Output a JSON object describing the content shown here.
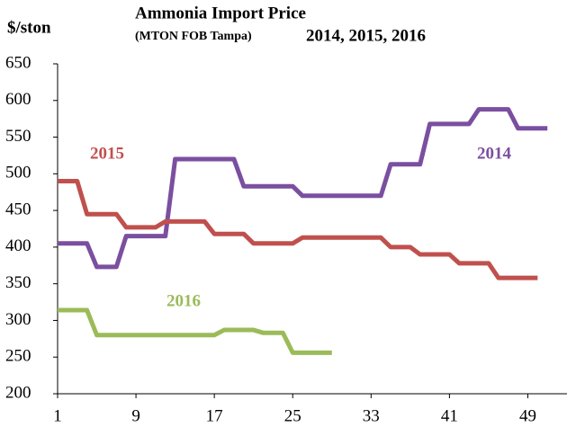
{
  "chart_data": {
    "type": "line",
    "title": "Ammonia Import Price",
    "subtitle": "(MTON FOB Tampa)",
    "subtitle2": "2014, 2015, 2016",
    "y_label": "$/ston",
    "x": [
      1,
      2,
      3,
      4,
      5,
      6,
      7,
      8,
      9,
      10,
      11,
      12,
      13,
      14,
      15,
      16,
      17,
      18,
      19,
      20,
      21,
      22,
      23,
      24,
      25,
      26,
      27,
      28,
      29,
      30,
      31,
      32,
      33,
      34,
      35,
      36,
      37,
      38,
      39,
      40,
      41,
      42,
      43,
      44,
      45,
      46,
      47,
      48,
      49,
      50,
      51
    ],
    "series": [
      {
        "name": "2014",
        "color": "#7b4fa0",
        "values": [
          405,
          405,
          405,
          405,
          373,
          373,
          373,
          415,
          415,
          415,
          415,
          415,
          520,
          520,
          520,
          520,
          520,
          520,
          520,
          483,
          483,
          483,
          483,
          483,
          483,
          470,
          470,
          470,
          470,
          470,
          470,
          470,
          470,
          470,
          513,
          513,
          513,
          513,
          568,
          568,
          568,
          568,
          568,
          588,
          588,
          588,
          588,
          562,
          562,
          562,
          562
        ]
      },
      {
        "name": "2015",
        "color": "#c0504d",
        "values": [
          490,
          490,
          490,
          445,
          445,
          445,
          445,
          427,
          427,
          427,
          427,
          435,
          435,
          435,
          435,
          435,
          418,
          418,
          418,
          418,
          405,
          405,
          405,
          405,
          405,
          413,
          413,
          413,
          413,
          413,
          413,
          413,
          413,
          413,
          400,
          400,
          400,
          390,
          390,
          390,
          390,
          378,
          378,
          378,
          378,
          358,
          358,
          358,
          358,
          358,
          null
        ]
      },
      {
        "name": "2016",
        "color": "#9bbb59",
        "values": [
          314,
          314,
          314,
          314,
          280,
          280,
          280,
          280,
          280,
          280,
          280,
          280,
          280,
          280,
          280,
          280,
          280,
          287,
          287,
          287,
          287,
          283,
          283,
          283,
          256,
          256,
          256,
          256,
          256,
          null,
          null,
          null,
          null,
          null,
          null,
          null,
          null,
          null,
          null,
          null,
          null,
          null,
          null,
          null,
          null,
          null,
          null,
          null,
          null,
          null,
          null
        ]
      }
    ],
    "xlim": [
      1,
      53
    ],
    "xticks": [
      1,
      9,
      17,
      25,
      33,
      41,
      49
    ],
    "ylim": [
      200,
      650
    ],
    "yticks": [
      200,
      250,
      300,
      350,
      400,
      450,
      500,
      550,
      600,
      650
    ],
    "grid": false
  }
}
